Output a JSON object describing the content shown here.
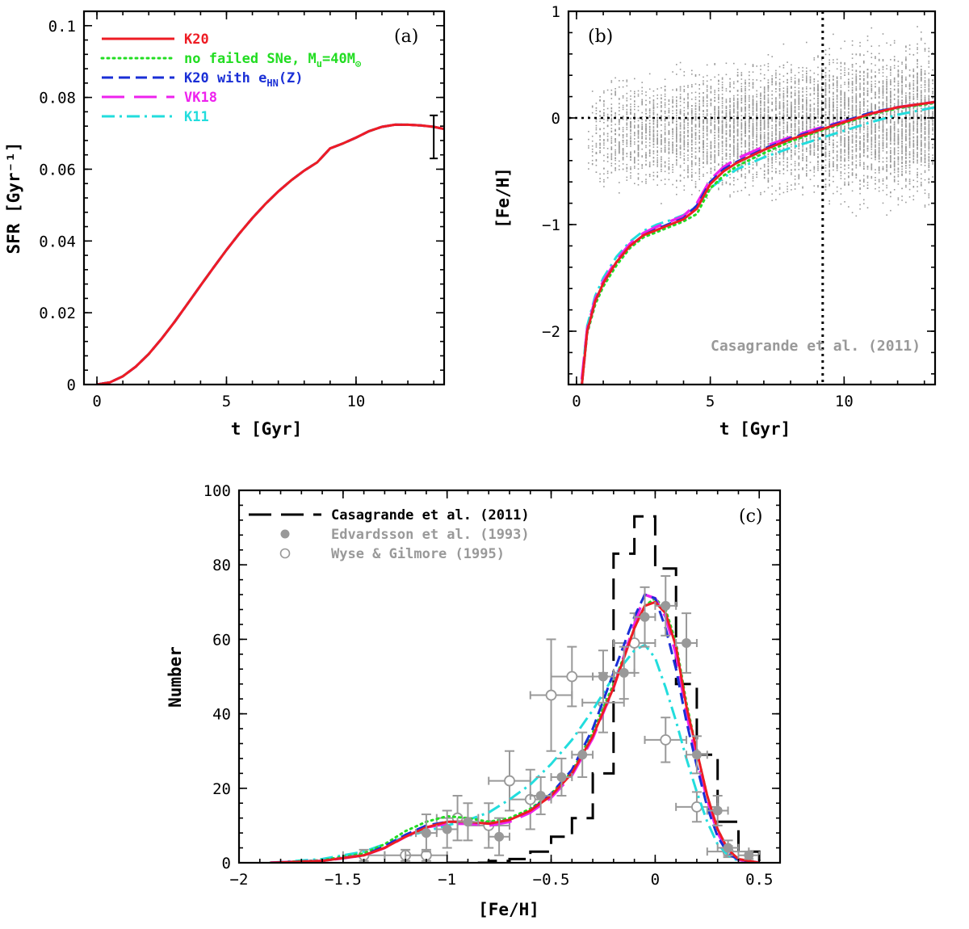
{
  "colors": {
    "K20": "#ee1c24",
    "noFailed": "#22dd22",
    "K20eHN": "#1a2fd6",
    "VK18": "#ee22ee",
    "K11": "#22dddd",
    "obs": "#999999",
    "black": "#000000"
  },
  "chart_data": [
    {
      "type": "line",
      "panel_label": "(a)",
      "xlabel": "t   [Gyr]",
      "ylabel": "SFR [Gyr⁻¹]",
      "xlim": [
        -0.5,
        13.4
      ],
      "ylim": [
        0,
        0.104
      ],
      "xticks": [
        0,
        5,
        10
      ],
      "xtick_labels": [
        "0",
        "5",
        "10"
      ],
      "yticks": [
        0,
        0.02,
        0.04,
        0.06,
        0.08,
        0.1
      ],
      "ytick_labels": [
        "0",
        "0.02",
        "0.04",
        "0.06",
        "0.08",
        "0.1"
      ],
      "legend_placement": "top-left",
      "legend": [
        {
          "key": "K20",
          "label": "K20",
          "style": "solid"
        },
        {
          "key": "noFailed",
          "label": "no failed SNe, M",
          "sub": "u",
          "tail": "=40M",
          "sun": true,
          "style": "dotted"
        },
        {
          "key": "K20eHN",
          "label": "K20 with e",
          "sub": "HN",
          "tail": "(Z)",
          "style": "dashed"
        },
        {
          "key": "VK18",
          "label": "VK18",
          "style": "longdash"
        },
        {
          "key": "K11",
          "label": "K11",
          "style": "dashdot"
        }
      ],
      "series": [
        {
          "key": "K20",
          "x": [
            0,
            0.5,
            1,
            1.5,
            2,
            2.5,
            3,
            3.5,
            4,
            4.5,
            5,
            5.5,
            6,
            6.5,
            7,
            7.5,
            8,
            8.5,
            9,
            9.5,
            10,
            10.5,
            11,
            11.5,
            12,
            12.5,
            13,
            13.4
          ],
          "y": [
            0,
            0.0006,
            0.0023,
            0.005,
            0.0085,
            0.0128,
            0.0175,
            0.0225,
            0.0276,
            0.0326,
            0.0375,
            0.0421,
            0.0464,
            0.0503,
            0.0538,
            0.0569,
            0.0596,
            0.0619,
            0.0658,
            0.0672,
            0.0688,
            0.0706,
            0.0718,
            0.0724,
            0.0724,
            0.0722,
            0.0718,
            0.0712
          ]
        }
      ],
      "error_bar": {
        "x": 13.0,
        "y_low": 0.063,
        "y_high": 0.075
      }
    },
    {
      "type": "scatter",
      "panel_label": "(b)",
      "xlabel": "t   [Gyr]",
      "ylabel": "[Fe/H]",
      "xlim": [
        -0.3,
        13.4
      ],
      "ylim": [
        -2.5,
        1.0
      ],
      "xticks": [
        0,
        5,
        10
      ],
      "xtick_labels": [
        "0",
        "5",
        "10"
      ],
      "yticks": [
        -2,
        -1,
        0,
        1
      ],
      "ytick_labels": [
        "−2",
        "−1",
        "0",
        "1"
      ],
      "annotation": "Casagrande et al. (2011)",
      "vertical_dotted_line_x": 9.2,
      "horizontal_dotted_line_y": 0,
      "series": [
        {
          "key": "K20",
          "x": [
            0.2,
            0.4,
            0.7,
            1.0,
            1.5,
            2.0,
            2.5,
            3.0,
            3.5,
            4.0,
            4.5,
            5.0,
            5.5,
            6.0,
            7.0,
            8.0,
            9.0,
            10.0,
            11.0,
            12.0,
            13.4
          ],
          "y": [
            -2.5,
            -2.0,
            -1.72,
            -1.55,
            -1.35,
            -1.2,
            -1.1,
            -1.05,
            -1.0,
            -0.95,
            -0.85,
            -0.62,
            -0.5,
            -0.42,
            -0.3,
            -0.2,
            -0.12,
            -0.04,
            0.04,
            0.1,
            0.15
          ]
        },
        {
          "key": "noFailed",
          "x": [
            0.2,
            0.4,
            0.7,
            1.0,
            1.5,
            2.0,
            2.5,
            3.0,
            3.5,
            4.0,
            4.5,
            5.0,
            5.5,
            6.0,
            7.0,
            8.0,
            9.0,
            10.0,
            11.0,
            12.0,
            13.4
          ],
          "y": [
            -2.5,
            -2.02,
            -1.75,
            -1.58,
            -1.38,
            -1.22,
            -1.12,
            -1.07,
            -1.02,
            -0.97,
            -0.9,
            -0.66,
            -0.54,
            -0.45,
            -0.33,
            -0.22,
            -0.13,
            -0.05,
            0.03,
            0.09,
            0.14
          ]
        },
        {
          "key": "K20eHN",
          "x": [
            0.2,
            0.4,
            0.7,
            1.0,
            1.5,
            2.0,
            2.5,
            3.0,
            3.5,
            4.0,
            4.5,
            5.0,
            5.5,
            6.0,
            7.0,
            8.0,
            9.0,
            10.0,
            11.0,
            12.0,
            13.4
          ],
          "y": [
            -2.5,
            -2.0,
            -1.72,
            -1.55,
            -1.35,
            -1.2,
            -1.1,
            -1.04,
            -0.99,
            -0.94,
            -0.82,
            -0.6,
            -0.48,
            -0.41,
            -0.29,
            -0.19,
            -0.11,
            -0.03,
            0.05,
            0.1,
            0.15
          ]
        },
        {
          "key": "VK18",
          "x": [
            0.2,
            0.4,
            0.7,
            1.0,
            1.5,
            2.0,
            2.5,
            3.0,
            3.5,
            4.0,
            4.5,
            5.0,
            5.5,
            6.0,
            7.0,
            8.0,
            9.0,
            10.0,
            11.0,
            12.0,
            13.4
          ],
          "y": [
            -2.45,
            -1.98,
            -1.7,
            -1.53,
            -1.33,
            -1.18,
            -1.08,
            -1.02,
            -0.97,
            -0.92,
            -0.8,
            -0.58,
            -0.46,
            -0.38,
            -0.27,
            -0.18,
            -0.1,
            -0.03,
            0.04,
            0.1,
            0.15
          ]
        },
        {
          "key": "K11",
          "x": [
            0.2,
            0.4,
            0.7,
            1.0,
            1.5,
            2.0,
            2.5,
            3.0,
            3.5,
            4.0,
            4.5,
            5.0,
            5.5,
            6.0,
            7.0,
            8.0,
            9.0,
            10.0,
            11.0,
            12.0,
            13.4
          ],
          "y": [
            -2.45,
            -1.95,
            -1.67,
            -1.5,
            -1.3,
            -1.16,
            -1.06,
            -1.0,
            -0.96,
            -0.91,
            -0.83,
            -0.66,
            -0.56,
            -0.48,
            -0.37,
            -0.28,
            -0.2,
            -0.12,
            -0.04,
            0.03,
            0.1
          ]
        }
      ]
    },
    {
      "type": "line",
      "panel_label": "(c)",
      "xlabel": "[Fe/H]",
      "ylabel": "Number",
      "xlim": [
        -2.0,
        0.6
      ],
      "ylim": [
        0,
        100
      ],
      "xticks": [
        -2,
        -1.5,
        -1,
        -0.5,
        0,
        0.5
      ],
      "xtick_labels": [
        "−2",
        "−1.5",
        "−1",
        "−0.5",
        "0",
        "0.5"
      ],
      "yticks": [
        0,
        20,
        40,
        60,
        80,
        100
      ],
      "ytick_labels": [
        "0",
        "20",
        "40",
        "60",
        "80",
        "100"
      ],
      "legend_placement": "top-left",
      "legend": [
        {
          "key": "black",
          "label": "Casagrande et al. (2011)",
          "style": "longdash"
        },
        {
          "key": "obs",
          "label": "Edvardsson et al. (1993)",
          "marker": "filled-circle"
        },
        {
          "key": "obs",
          "label": "Wyse & Gilmore (1995)",
          "marker": "open-circle"
        }
      ],
      "histogram": {
        "name": "Casagrande et al. (2011)",
        "edges": [
          -1.0,
          -0.9,
          -0.8,
          -0.7,
          -0.6,
          -0.5,
          -0.4,
          -0.3,
          -0.2,
          -0.1,
          0.0,
          0.1,
          0.2,
          0.3,
          0.4,
          0.5
        ],
        "counts": [
          0,
          0,
          0.5,
          1,
          3,
          7,
          12,
          24,
          83,
          93,
          79,
          48,
          29,
          11,
          3
        ]
      },
      "series": [
        {
          "key": "K20",
          "x": [
            -1.85,
            -1.6,
            -1.4,
            -1.3,
            -1.2,
            -1.1,
            -1.0,
            -0.9,
            -0.8,
            -0.7,
            -0.6,
            -0.5,
            -0.4,
            -0.3,
            -0.2,
            -0.1,
            -0.05,
            0.0,
            0.05,
            0.1,
            0.15,
            0.2,
            0.25,
            0.3,
            0.35,
            0.4,
            0.5
          ],
          "y": [
            0,
            0.5,
            2,
            4,
            7,
            9.5,
            11,
            11,
            10.5,
            11.5,
            14,
            18,
            24,
            34,
            47,
            63,
            69,
            70,
            67,
            58,
            42,
            30,
            18,
            9,
            3.5,
            1,
            0
          ]
        },
        {
          "key": "noFailed",
          "x": [
            -1.85,
            -1.6,
            -1.4,
            -1.3,
            -1.2,
            -1.1,
            -1.0,
            -0.9,
            -0.8,
            -0.7,
            -0.6,
            -0.5,
            -0.4,
            -0.3,
            -0.2,
            -0.1,
            -0.05,
            0.0,
            0.05,
            0.1,
            0.15,
            0.2,
            0.25,
            0.3,
            0.35,
            0.4,
            0.5
          ],
          "y": [
            0,
            0.7,
            2.5,
            5,
            8.5,
            11,
            12.5,
            12,
            11,
            12,
            14.5,
            18.5,
            24.5,
            35,
            48,
            63,
            69,
            71,
            68,
            59,
            43,
            30,
            18,
            9,
            3.5,
            1,
            0
          ]
        },
        {
          "key": "K20eHN",
          "x": [
            -1.85,
            -1.6,
            -1.4,
            -1.3,
            -1.2,
            -1.1,
            -1.0,
            -0.9,
            -0.8,
            -0.7,
            -0.6,
            -0.5,
            -0.4,
            -0.3,
            -0.2,
            -0.1,
            -0.05,
            0.0,
            0.05,
            0.1,
            0.15,
            0.2,
            0.25,
            0.3,
            0.35,
            0.4,
            0.5
          ],
          "y": [
            0,
            0.5,
            2,
            4.5,
            7.5,
            10,
            11,
            11,
            10.5,
            11.5,
            14,
            18.5,
            25,
            36,
            51,
            66,
            72,
            71,
            63,
            52,
            38,
            26,
            15,
            7,
            2.5,
            0.8,
            0
          ]
        },
        {
          "key": "VK18",
          "x": [
            -1.85,
            -1.6,
            -1.4,
            -1.3,
            -1.2,
            -1.1,
            -1.0,
            -0.9,
            -0.8,
            -0.7,
            -0.6,
            -0.5,
            -0.4,
            -0.3,
            -0.2,
            -0.1,
            -0.05,
            0.0,
            0.05,
            0.1,
            0.15,
            0.2,
            0.25,
            0.3,
            0.35,
            0.4,
            0.5
          ],
          "y": [
            0,
            0.5,
            2,
            4,
            7,
            9.5,
            10.5,
            10.5,
            10,
            11,
            13.5,
            17.5,
            23.5,
            33.5,
            47,
            64,
            72,
            71,
            66,
            56,
            40,
            28,
            17,
            8,
            3,
            0.8,
            0
          ]
        },
        {
          "key": "K11",
          "x": [
            -1.85,
            -1.6,
            -1.4,
            -1.3,
            -1.2,
            -1.1,
            -1.0,
            -0.9,
            -0.8,
            -0.7,
            -0.6,
            -0.5,
            -0.4,
            -0.3,
            -0.2,
            -0.1,
            -0.05,
            0.0,
            0.05,
            0.1,
            0.15,
            0.2,
            0.25,
            0.3,
            0.35,
            0.4,
            0.5
          ],
          "y": [
            0,
            1,
            3,
            5,
            7,
            8.5,
            10,
            11.5,
            13.5,
            17,
            21,
            26.5,
            33,
            41,
            50,
            57,
            58.5,
            55,
            47,
            38,
            28,
            19,
            11,
            5,
            2,
            0.5,
            0
          ]
        }
      ],
      "points": {
        "edvardsson": [
          {
            "x": -1.1,
            "y": 8,
            "xerr": 0.05,
            "yerr": 5
          },
          {
            "x": -1.0,
            "y": 9,
            "xerr": 0.05,
            "yerr": 5
          },
          {
            "x": -0.9,
            "y": 11,
            "xerr": 0.05,
            "yerr": 5
          },
          {
            "x": -0.75,
            "y": 7,
            "xerr": 0.05,
            "yerr": 5
          },
          {
            "x": -0.55,
            "y": 18,
            "xerr": 0.05,
            "yerr": 5
          },
          {
            "x": -0.45,
            "y": 23,
            "xerr": 0.05,
            "yerr": 5
          },
          {
            "x": -0.35,
            "y": 29,
            "xerr": 0.05,
            "yerr": 6
          },
          {
            "x": -0.25,
            "y": 50,
            "xerr": 0.05,
            "yerr": 7
          },
          {
            "x": -0.15,
            "y": 51,
            "xerr": 0.05,
            "yerr": 7
          },
          {
            "x": -0.05,
            "y": 66,
            "xerr": 0.05,
            "yerr": 8
          },
          {
            "x": 0.05,
            "y": 69,
            "xerr": 0.05,
            "yerr": 8
          },
          {
            "x": 0.15,
            "y": 59,
            "xerr": 0.05,
            "yerr": 8
          },
          {
            "x": 0.2,
            "y": 29,
            "xerr": 0.05,
            "yerr": 5
          },
          {
            "x": 0.3,
            "y": 14,
            "xerr": 0.05,
            "yerr": 4
          },
          {
            "x": 0.35,
            "y": 4,
            "xerr": 0.05,
            "yerr": 2
          },
          {
            "x": 0.45,
            "y": 2,
            "xerr": 0.05,
            "yerr": 1
          }
        ],
        "wyse_gilmore": [
          {
            "x": -1.4,
            "y": 2,
            "xerr": 0.1,
            "yerr": 1.5
          },
          {
            "x": -1.2,
            "y": 2,
            "xerr": 0.1,
            "yerr": 1.5
          },
          {
            "x": -1.1,
            "y": 2,
            "xerr": 0.1,
            "yerr": 1.5
          },
          {
            "x": -0.95,
            "y": 12,
            "xerr": 0.1,
            "yerr": 6
          },
          {
            "x": -0.8,
            "y": 10,
            "xerr": 0.1,
            "yerr": 6
          },
          {
            "x": -0.7,
            "y": 22,
            "xerr": 0.1,
            "yerr": 8
          },
          {
            "x": -0.6,
            "y": 17,
            "xerr": 0.1,
            "yerr": 8
          },
          {
            "x": -0.5,
            "y": 45,
            "xerr": 0.1,
            "yerr": 15
          },
          {
            "x": -0.4,
            "y": 50,
            "xerr": 0.1,
            "yerr": 8
          },
          {
            "x": -0.25,
            "y": 43,
            "xerr": 0.1,
            "yerr": 8
          },
          {
            "x": -0.1,
            "y": 59,
            "xerr": 0.1,
            "yerr": 8
          },
          {
            "x": 0.05,
            "y": 33,
            "xerr": 0.1,
            "yerr": 6
          },
          {
            "x": 0.2,
            "y": 15,
            "xerr": 0.1,
            "yerr": 4
          },
          {
            "x": 0.35,
            "y": 3,
            "xerr": 0.1,
            "yerr": 1.5
          }
        ]
      }
    }
  ]
}
